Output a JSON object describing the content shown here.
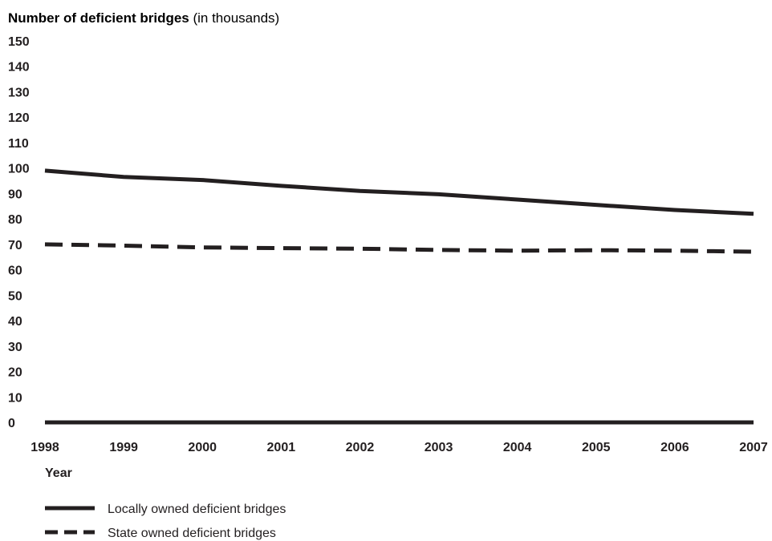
{
  "chart_data": {
    "type": "line",
    "title_bold": "Number of deficient bridges",
    "title_rest": " (in thousands)",
    "xlabel": "Year",
    "ylabel": "",
    "x": [
      "1998",
      "1999",
      "2000",
      "2001",
      "2002",
      "2003",
      "2004",
      "2005",
      "2006",
      "2007"
    ],
    "yticks": [
      "0",
      "10",
      "20",
      "30",
      "40",
      "50",
      "60",
      "70",
      "80",
      "90",
      "100",
      "110",
      "120",
      "130",
      "140",
      "150"
    ],
    "ylim": [
      0,
      150
    ],
    "grid": false,
    "legend_placement": "bottom-left",
    "series": [
      {
        "name": "Locally owned deficient bridges",
        "style": "solid",
        "color": "#231f20",
        "values": [
          99,
          96.5,
          95.3,
          93,
          91,
          89.7,
          87.6,
          85.5,
          83.5,
          82
        ]
      },
      {
        "name": "State owned deficient bridges",
        "style": "dashed",
        "color": "#231f20",
        "values": [
          70,
          69.5,
          68.8,
          68.5,
          68.3,
          67.8,
          67.5,
          67.7,
          67.5,
          67.1
        ]
      }
    ]
  }
}
